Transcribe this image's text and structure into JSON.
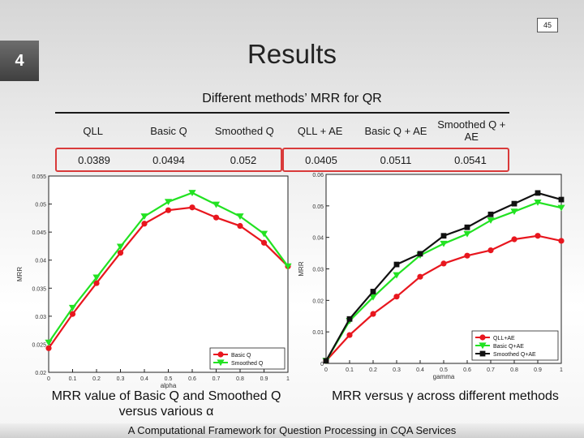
{
  "slide": {
    "number": "45",
    "section": "4",
    "title": "Results",
    "table_caption": "Different methods’ MRR for QR",
    "footer": "A Computational Framework for Question Processing in CQA Services"
  },
  "table": {
    "headers": [
      "QLL",
      "Basic Q",
      "Smoothed Q",
      "QLL + AE",
      "Basic Q + AE",
      "Smoothed Q + AE"
    ],
    "values": [
      "0.0389",
      "0.0494",
      "0.052",
      "0.0405",
      "0.0511",
      "0.0541"
    ]
  },
  "captions": {
    "left": "MRR value of Basic Q and Smoothed Q versus various α",
    "right": "MRR versus γ across different methods"
  },
  "chart_data": [
    {
      "type": "line",
      "xlabel": "alpha",
      "ylabel": "MRR",
      "xlim": [
        0,
        1
      ],
      "ylim": [
        0.02,
        0.055
      ],
      "x": [
        0,
        0.1,
        0.2,
        0.3,
        0.4,
        0.5,
        0.6,
        0.7,
        0.8,
        0.9,
        1
      ],
      "x_ticks": [
        "0",
        "0.1",
        "0.2",
        "0.3",
        "0.4",
        "0.5",
        "0.6",
        "0.7",
        "0.8",
        "0.9",
        "1"
      ],
      "y_ticks": [
        {
          "value": 0.02,
          "label": "0.02"
        },
        {
          "value": 0.025,
          "label": "0.025"
        },
        {
          "value": 0.03,
          "label": "0.03"
        },
        {
          "value": 0.035,
          "label": "0.035"
        },
        {
          "value": 0.04,
          "label": "0.04"
        },
        {
          "value": 0.045,
          "label": "0.045"
        },
        {
          "value": 0.05,
          "label": "0.05"
        },
        {
          "value": 0.055,
          "label": "0.055"
        }
      ],
      "series": [
        {
          "name": "Basic Q",
          "color": "#e8161e",
          "marker": "circle",
          "values": [
            0.0243,
            0.0304,
            0.0359,
            0.0413,
            0.0465,
            0.0489,
            0.0494,
            0.0476,
            0.0461,
            0.0431,
            0.0389
          ]
        },
        {
          "name": "Smoothed Q",
          "color": "#22e222",
          "marker": "triangle",
          "values": [
            0.0253,
            0.0315,
            0.0369,
            0.0424,
            0.0478,
            0.0504,
            0.052,
            0.0499,
            0.0478,
            0.0447,
            0.0389
          ]
        }
      ],
      "legend": "bottom-right"
    },
    {
      "type": "line",
      "xlabel": "gamma",
      "ylabel": "MRR",
      "xlim": [
        0,
        1
      ],
      "ylim": [
        0,
        0.06
      ],
      "x": [
        0,
        0.1,
        0.2,
        0.3,
        0.4,
        0.5,
        0.6,
        0.7,
        0.8,
        0.9,
        1
      ],
      "x_ticks": [
        "0",
        "0.1",
        "0.2",
        "0.3",
        "0.4",
        "0.5",
        "0.6",
        "0.7",
        "0.8",
        "0.9",
        "1"
      ],
      "y_ticks": [
        {
          "value": 0,
          "label": "0"
        },
        {
          "value": 0.01,
          "label": "0.01"
        },
        {
          "value": 0.02,
          "label": "0.02"
        },
        {
          "value": 0.03,
          "label": "0.03"
        },
        {
          "value": 0.04,
          "label": "0.04"
        },
        {
          "value": 0.05,
          "label": "0.05"
        },
        {
          "value": 0.06,
          "label": "0.06"
        }
      ],
      "series": [
        {
          "name": "QLL+AE",
          "color": "#e8161e",
          "marker": "circle",
          "values": [
            0.0008,
            0.009,
            0.0157,
            0.0212,
            0.0275,
            0.0317,
            0.0342,
            0.0359,
            0.0394,
            0.0405,
            0.0389
          ]
        },
        {
          "name": "Basic Q+AE",
          "color": "#22e222",
          "marker": "triangle",
          "values": [
            0.0008,
            0.0135,
            0.021,
            0.028,
            0.0343,
            0.038,
            0.0411,
            0.0454,
            0.0482,
            0.0511,
            0.0494
          ]
        },
        {
          "name": "Smoothed Q+AE",
          "color": "#111111",
          "marker": "square",
          "values": [
            0.0008,
            0.0141,
            0.0228,
            0.0314,
            0.0348,
            0.0405,
            0.0432,
            0.0473,
            0.0507,
            0.0541,
            0.052
          ]
        }
      ],
      "legend": "bottom-right"
    }
  ]
}
